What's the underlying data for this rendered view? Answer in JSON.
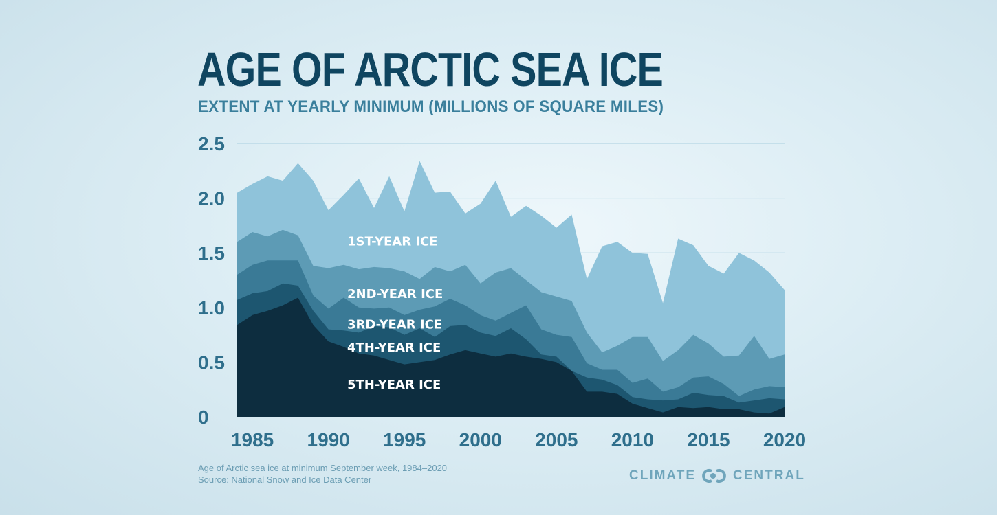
{
  "header": {
    "title": "AGE OF ARCTIC SEA ICE",
    "subtitle": "EXTENT AT YEARLY MINIMUM (MILLIONS OF SQUARE MILES)"
  },
  "footer": {
    "note_line1": "Age of Arctic sea ice at minimum September week, 1984–2020",
    "note_line2": "Source: National Snow and Ice Data Center",
    "logo_left": "CLIMATE",
    "logo_right": "CENTRAL",
    "logo_icon": "linked-circles-icon"
  },
  "colors": {
    "first_year": "#8fc3da",
    "second_year": "#5d9bb5",
    "third_year": "#3a7a96",
    "fourth_year": "#1d5670",
    "fifth_year": "#0d2d3f",
    "title": "#0f4560",
    "axis": "#2f6f8c",
    "grid": "#a9cfdf"
  },
  "chart_data": {
    "type": "area",
    "stacked": true,
    "title": "AGE OF ARCTIC SEA ICE",
    "subtitle": "EXTENT AT YEARLY MINIMUM (MILLIONS OF SQUARE MILES)",
    "xlabel": "",
    "ylabel": "Millions of square miles",
    "ylim": [
      0,
      2.5
    ],
    "yticks": [
      "0",
      "0.5",
      "1.0",
      "1.5",
      "2.0",
      "2.5"
    ],
    "xticks": [
      "1985",
      "1990",
      "1995",
      "2000",
      "2005",
      "2010",
      "2015",
      "2020"
    ],
    "grid": true,
    "x": [
      1984,
      1985,
      1986,
      1987,
      1988,
      1989,
      1990,
      1991,
      1992,
      1993,
      1994,
      1995,
      1996,
      1997,
      1998,
      1999,
      2000,
      2001,
      2002,
      2003,
      2004,
      2005,
      2006,
      2007,
      2008,
      2009,
      2010,
      2011,
      2012,
      2013,
      2014,
      2015,
      2016,
      2017,
      2018,
      2019,
      2020
    ],
    "series": [
      {
        "name": "5TH-YEAR ICE",
        "values": [
          0.84,
          0.93,
          0.97,
          1.02,
          1.09,
          0.84,
          0.69,
          0.64,
          0.58,
          0.56,
          0.52,
          0.48,
          0.5,
          0.52,
          0.57,
          0.61,
          0.58,
          0.55,
          0.58,
          0.55,
          0.53,
          0.5,
          0.42,
          0.23,
          0.23,
          0.21,
          0.12,
          0.08,
          0.04,
          0.09,
          0.08,
          0.09,
          0.07,
          0.07,
          0.04,
          0.03,
          0.09
        ]
      },
      {
        "name": "4TH-YEAR ICE",
        "values": [
          0.23,
          0.2,
          0.18,
          0.2,
          0.11,
          0.13,
          0.11,
          0.15,
          0.19,
          0.27,
          0.3,
          0.27,
          0.31,
          0.21,
          0.26,
          0.23,
          0.19,
          0.19,
          0.23,
          0.16,
          0.04,
          0.05,
          0.0,
          0.13,
          0.11,
          0.08,
          0.06,
          0.08,
          0.11,
          0.07,
          0.14,
          0.11,
          0.12,
          0.06,
          0.11,
          0.14,
          0.07
        ]
      },
      {
        "name": "3RD-YEAR ICE",
        "values": [
          0.23,
          0.26,
          0.28,
          0.21,
          0.23,
          0.14,
          0.19,
          0.3,
          0.23,
          0.16,
          0.18,
          0.18,
          0.17,
          0.28,
          0.25,
          0.18,
          0.16,
          0.14,
          0.14,
          0.31,
          0.23,
          0.2,
          0.31,
          0.13,
          0.09,
          0.14,
          0.13,
          0.19,
          0.08,
          0.11,
          0.14,
          0.17,
          0.11,
          0.06,
          0.1,
          0.11,
          0.11
        ]
      },
      {
        "name": "2ND-YEAR ICE",
        "values": [
          0.3,
          0.3,
          0.22,
          0.28,
          0.23,
          0.27,
          0.37,
          0.3,
          0.35,
          0.38,
          0.36,
          0.4,
          0.28,
          0.36,
          0.25,
          0.37,
          0.29,
          0.44,
          0.41,
          0.23,
          0.34,
          0.35,
          0.33,
          0.28,
          0.16,
          0.22,
          0.42,
          0.38,
          0.28,
          0.34,
          0.39,
          0.3,
          0.25,
          0.37,
          0.49,
          0.25,
          0.3
        ]
      },
      {
        "name": "1ST-YEAR ICE",
        "values": [
          0.45,
          0.44,
          0.55,
          0.45,
          0.66,
          0.78,
          0.53,
          0.64,
          0.83,
          0.54,
          0.84,
          0.55,
          1.08,
          0.68,
          0.73,
          0.47,
          0.73,
          0.84,
          0.47,
          0.68,
          0.7,
          0.63,
          0.79,
          0.49,
          0.97,
          0.95,
          0.77,
          0.76,
          0.53,
          1.02,
          0.82,
          0.71,
          0.76,
          0.94,
          0.69,
          0.79,
          0.59
        ]
      }
    ],
    "annotations": [
      {
        "text": "1ST-YEAR ICE",
        "x": 1991.5,
        "y": 1.61
      },
      {
        "text": "2ND-YEAR ICE",
        "x": 1991.5,
        "y": 1.13
      },
      {
        "text": "3RD-YEAR ICE",
        "x": 1991.5,
        "y": 0.85
      },
      {
        "text": "4TH-YEAR ICE",
        "x": 1991.5,
        "y": 0.64
      },
      {
        "text": "5TH-YEAR ICE",
        "x": 1991.5,
        "y": 0.3
      }
    ]
  }
}
